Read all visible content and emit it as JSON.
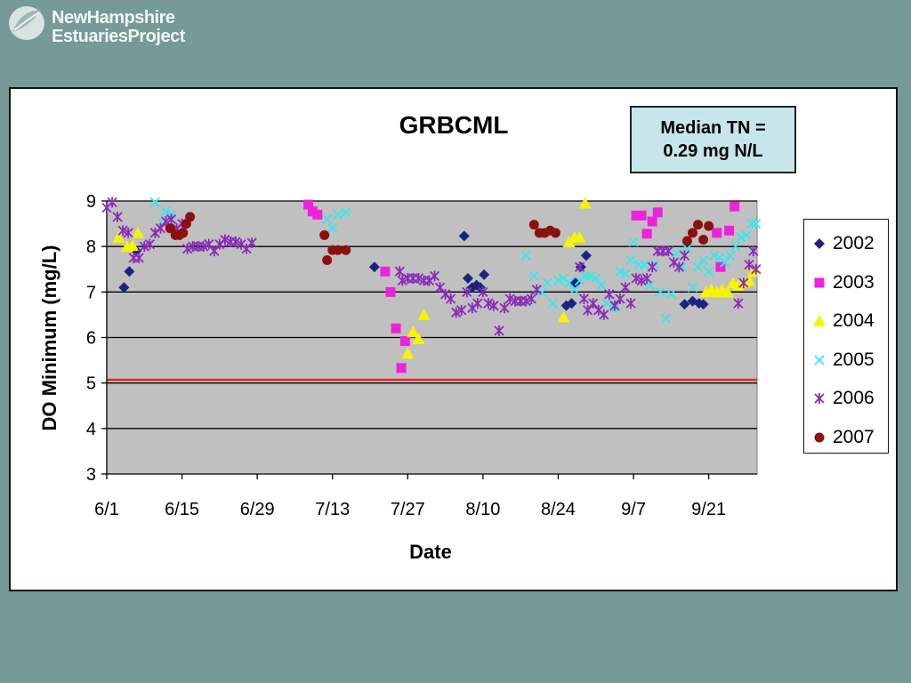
{
  "logo": {
    "line1": "NewHampshire",
    "line2": "EstuariesProject"
  },
  "note": {
    "line1": "Median TN =",
    "line2": "0.29 mg N/L"
  },
  "chart_data": {
    "type": "scatter",
    "title": "GRBCML",
    "xlabel": "Date",
    "ylabel": "DO Minimum (mg/L)",
    "ylim": [
      3,
      9
    ],
    "xlim": [
      0,
      121
    ],
    "x_unit": "days from 6/1",
    "x_ticks": [
      {
        "label": "6/1",
        "x": 0
      },
      {
        "label": "6/15",
        "x": 14
      },
      {
        "label": "6/29",
        "x": 28
      },
      {
        "label": "7/13",
        "x": 42
      },
      {
        "label": "7/27",
        "x": 56
      },
      {
        "label": "8/10",
        "x": 70
      },
      {
        "label": "8/24",
        "x": 84
      },
      {
        "label": "9/7",
        "x": 98
      },
      {
        "label": "9/21",
        "x": 112
      }
    ],
    "y_ticks": [
      3,
      4,
      5,
      6,
      7,
      8,
      9
    ],
    "grid": "horizontal",
    "legend": "right",
    "reference_line": {
      "y": 5.07,
      "color": "#e8231e"
    },
    "series": [
      {
        "name": "2002",
        "marker": "diamond",
        "color": "#1a2380",
        "points": [
          [
            3.2,
            7.1
          ],
          [
            4.2,
            7.45
          ],
          [
            5.5,
            7.9
          ],
          [
            49.8,
            7.55
          ],
          [
            66.5,
            8.23
          ],
          [
            67.2,
            7.3
          ],
          [
            68.0,
            7.1
          ],
          [
            68.8,
            7.15
          ],
          [
            69.5,
            7.1
          ],
          [
            70.2,
            7.38
          ],
          [
            85.5,
            6.7
          ],
          [
            86.5,
            6.75
          ],
          [
            87.2,
            7.2
          ],
          [
            88.2,
            7.55
          ],
          [
            89.2,
            7.8
          ],
          [
            107.5,
            6.73
          ],
          [
            109.0,
            6.8
          ],
          [
            110.2,
            6.75
          ],
          [
            111.0,
            6.73
          ]
        ]
      },
      {
        "name": "2003",
        "marker": "square",
        "color": "#ee22dd",
        "points": [
          [
            37.5,
            8.92
          ],
          [
            38.3,
            8.77
          ],
          [
            39.2,
            8.7
          ],
          [
            51.8,
            7.45
          ],
          [
            52.8,
            7.0
          ],
          [
            53.8,
            6.2
          ],
          [
            54.8,
            5.33
          ],
          [
            55.5,
            5.92
          ],
          [
            98.5,
            8.68
          ],
          [
            99.5,
            8.68
          ],
          [
            100.5,
            8.28
          ],
          [
            101.5,
            8.55
          ],
          [
            102.5,
            8.75
          ],
          [
            113.5,
            8.3
          ],
          [
            114.2,
            7.55
          ],
          [
            115.8,
            8.35
          ],
          [
            116.8,
            8.88
          ]
        ]
      },
      {
        "name": "2004",
        "marker": "triangle",
        "color": "#f5f500",
        "points": [
          [
            2.2,
            8.2
          ],
          [
            3.8,
            8.0
          ],
          [
            4.8,
            8.02
          ],
          [
            5.8,
            8.3
          ],
          [
            56.0,
            5.65
          ],
          [
            57.0,
            6.12
          ],
          [
            58.0,
            5.97
          ],
          [
            59.0,
            6.5
          ],
          [
            85.0,
            6.45
          ],
          [
            86.0,
            8.1
          ],
          [
            87.0,
            8.2
          ],
          [
            88.0,
            8.2
          ],
          [
            89.0,
            8.95
          ],
          [
            111.5,
            7.0
          ],
          [
            112.5,
            7.05
          ],
          [
            113.5,
            7.0
          ],
          [
            114.5,
            7.05
          ],
          [
            115.5,
            7.0
          ],
          [
            116.5,
            7.2
          ],
          [
            117.5,
            7.15
          ],
          [
            118.5,
            7.2
          ],
          [
            119.5,
            7.25
          ],
          [
            120.3,
            7.45
          ]
        ]
      },
      {
        "name": "2005",
        "marker": "x",
        "color": "#33e8f0",
        "points": [
          [
            9.0,
            8.97
          ],
          [
            10.5,
            8.5
          ],
          [
            11.0,
            8.77
          ],
          [
            12.0,
            8.7
          ],
          [
            41.0,
            8.6
          ],
          [
            42.0,
            8.4
          ],
          [
            43.0,
            8.7
          ],
          [
            44.5,
            8.75
          ],
          [
            78.0,
            7.8
          ],
          [
            79.5,
            7.35
          ],
          [
            81.0,
            7.0
          ],
          [
            82.0,
            7.2
          ],
          [
            83.0,
            6.75
          ],
          [
            84.0,
            7.25
          ],
          [
            85.0,
            7.3
          ],
          [
            86.0,
            7.2
          ],
          [
            87.0,
            7.05
          ],
          [
            88.0,
            7.25
          ],
          [
            89.0,
            7.35
          ],
          [
            90.0,
            7.35
          ],
          [
            91.0,
            7.3
          ],
          [
            92.0,
            7.15
          ],
          [
            93.0,
            6.75
          ],
          [
            94.5,
            6.65
          ],
          [
            95.5,
            7.45
          ],
          [
            96.5,
            7.4
          ],
          [
            97.5,
            7.7
          ],
          [
            98.0,
            8.1
          ],
          [
            99.0,
            7.6
          ],
          [
            100.0,
            7.6
          ],
          [
            101.0,
            7.15
          ],
          [
            102.0,
            7.6
          ],
          [
            103.0,
            7.0
          ],
          [
            104.0,
            6.42
          ],
          [
            105.0,
            6.95
          ],
          [
            106.0,
            7.85
          ],
          [
            107.0,
            7.55
          ],
          [
            108.0,
            7.95
          ],
          [
            109.0,
            7.1
          ],
          [
            110.0,
            7.55
          ],
          [
            111.0,
            7.7
          ],
          [
            112.0,
            7.45
          ],
          [
            113.0,
            7.8
          ],
          [
            114.0,
            7.75
          ],
          [
            115.0,
            7.65
          ],
          [
            116.0,
            7.8
          ],
          [
            117.0,
            8.0
          ],
          [
            118.0,
            8.2
          ],
          [
            119.0,
            8.25
          ],
          [
            120.0,
            8.5
          ],
          [
            120.8,
            8.5
          ]
        ]
      },
      {
        "name": "2006",
        "marker": "star",
        "color": "#8a2bb8",
        "points": [
          [
            0.0,
            8.85
          ],
          [
            1.0,
            8.97
          ],
          [
            2.0,
            8.65
          ],
          [
            3.0,
            8.35
          ],
          [
            4.0,
            8.3
          ],
          [
            5.0,
            7.75
          ],
          [
            6.0,
            7.75
          ],
          [
            7.0,
            8.0
          ],
          [
            8.0,
            8.05
          ],
          [
            9.0,
            8.3
          ],
          [
            10.0,
            8.4
          ],
          [
            11.0,
            8.55
          ],
          [
            12.0,
            8.6
          ],
          [
            13.0,
            8.4
          ],
          [
            14.0,
            8.5
          ],
          [
            15.0,
            7.95
          ],
          [
            16.0,
            8.0
          ],
          [
            17.0,
            8.0
          ],
          [
            18.0,
            8.0
          ],
          [
            19.0,
            8.05
          ],
          [
            20.0,
            7.9
          ],
          [
            21.0,
            8.05
          ],
          [
            22.0,
            8.15
          ],
          [
            23.0,
            8.1
          ],
          [
            24.0,
            8.1
          ],
          [
            25.0,
            8.05
          ],
          [
            26.0,
            7.95
          ],
          [
            27.0,
            8.08
          ],
          [
            54.5,
            7.45
          ],
          [
            55.0,
            7.25
          ],
          [
            56.0,
            7.3
          ],
          [
            57.0,
            7.3
          ],
          [
            58.0,
            7.3
          ],
          [
            59.0,
            7.25
          ],
          [
            60.0,
            7.25
          ],
          [
            61.0,
            7.35
          ],
          [
            62.0,
            7.1
          ],
          [
            63.0,
            6.95
          ],
          [
            64.0,
            6.85
          ],
          [
            65.0,
            6.55
          ],
          [
            66.0,
            6.6
          ],
          [
            67.0,
            7.0
          ],
          [
            68.0,
            6.65
          ],
          [
            69.0,
            6.75
          ],
          [
            70.0,
            7.0
          ],
          [
            71.0,
            6.75
          ],
          [
            72.0,
            6.7
          ],
          [
            73.0,
            6.15
          ],
          [
            74.0,
            6.65
          ],
          [
            75.0,
            6.85
          ],
          [
            76.0,
            6.8
          ],
          [
            77.0,
            6.8
          ],
          [
            78.0,
            6.8
          ],
          [
            79.0,
            6.85
          ],
          [
            80.0,
            7.05
          ],
          [
            88.0,
            7.55
          ],
          [
            88.8,
            6.85
          ],
          [
            89.5,
            6.6
          ],
          [
            90.5,
            6.75
          ],
          [
            91.5,
            6.6
          ],
          [
            92.5,
            6.5
          ],
          [
            93.5,
            6.95
          ],
          [
            94.5,
            6.7
          ],
          [
            95.5,
            6.85
          ],
          [
            96.5,
            7.1
          ],
          [
            97.5,
            6.75
          ],
          [
            98.5,
            7.3
          ],
          [
            99.5,
            7.25
          ],
          [
            100.5,
            7.3
          ],
          [
            101.5,
            7.55
          ],
          [
            102.5,
            7.9
          ],
          [
            103.5,
            7.9
          ],
          [
            104.5,
            7.9
          ],
          [
            105.5,
            7.65
          ],
          [
            106.5,
            7.55
          ],
          [
            107.5,
            7.8
          ],
          [
            117.5,
            6.75
          ],
          [
            118.5,
            7.2
          ],
          [
            119.5,
            7.6
          ],
          [
            120.3,
            7.9
          ],
          [
            120.8,
            7.5
          ]
        ]
      },
      {
        "name": "2007",
        "marker": "circle",
        "color": "#8b1010",
        "points": [
          [
            11.8,
            8.4
          ],
          [
            12.8,
            8.25
          ],
          [
            13.5,
            8.25
          ],
          [
            14.2,
            8.3
          ],
          [
            14.8,
            8.5
          ],
          [
            15.5,
            8.65
          ],
          [
            40.5,
            8.25
          ],
          [
            41.0,
            7.7
          ],
          [
            42.0,
            7.92
          ],
          [
            43.0,
            7.92
          ],
          [
            44.5,
            7.92
          ],
          [
            79.5,
            8.48
          ],
          [
            80.5,
            8.3
          ],
          [
            81.5,
            8.3
          ],
          [
            82.5,
            8.35
          ],
          [
            83.5,
            8.3
          ],
          [
            108.0,
            8.12
          ],
          [
            109.0,
            8.3
          ],
          [
            110.0,
            8.48
          ],
          [
            111.0,
            8.15
          ],
          [
            112.0,
            8.45
          ]
        ]
      }
    ]
  }
}
